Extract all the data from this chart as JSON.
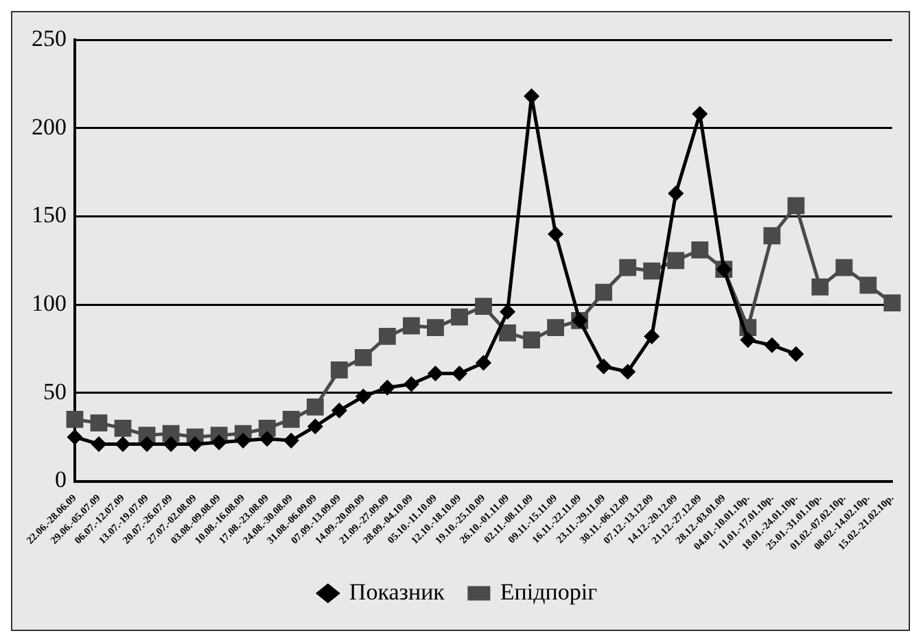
{
  "chart_data": {
    "type": "line",
    "categories": [
      "22.06.-28.06.09",
      "29.06.-05.07.09",
      "06.07.-12.07.09",
      "13.07.-19.07.09",
      "20.07.-26.07.09",
      "27.07.-02.08.09",
      "03.08.-09.08.09",
      "10.08.-16.08.09",
      "17.08.-23.08.09",
      "24.08.-30.08.09",
      "31.08.-06.09.09",
      "07.09.-13.09.09",
      "14.09.-20.09.09",
      "21.09.-27.09.09",
      "28.09.-04.10.09",
      "05.10.-11.10.09",
      "12.10.-18.10.09",
      "19.10.-25.10.09",
      "26.10.-01.11.09",
      "02.11.-08.11.09",
      "09.11.-15.11.09",
      "16.11.-22.11.09",
      "23.11.-29.11.09",
      "30.11.-06.12.09",
      "07.12.-13.12.09",
      "14.12.-20.12.09",
      "21.12.-27.12.09",
      "28.12.-03.01.09",
      "04.01.-10.01.10р.",
      "11.01.-17.01.10р.",
      "18.01.-24.01.10р.",
      "25.01.-31.01.10р.",
      "01.02.-07.02.10р.",
      "08.02.-14.02.10р.",
      "15.02.-21.02.10р."
    ],
    "series": [
      {
        "name": "Показник",
        "color": "#000000",
        "marker": "diamond",
        "values": [
          25,
          21,
          21,
          21,
          21,
          21,
          22,
          23,
          24,
          23,
          31,
          40,
          48,
          53,
          55,
          61,
          61,
          67,
          96,
          218,
          140,
          91,
          65,
          62,
          82,
          163,
          208,
          120,
          80,
          77,
          72,
          null,
          null,
          null,
          null
        ]
      },
      {
        "name": "Епідпоріг",
        "color": "#4a4a4a",
        "marker": "square",
        "values": [
          35,
          33,
          30,
          26,
          27,
          25,
          26,
          27,
          30,
          35,
          42,
          63,
          70,
          82,
          88,
          87,
          93,
          99,
          84,
          80,
          87,
          91,
          107,
          121,
          119,
          125,
          131,
          120,
          87,
          139,
          156,
          110,
          121,
          111,
          101
        ]
      }
    ],
    "ylim": [
      0,
      250
    ],
    "yticks": [
      0,
      50,
      100,
      150,
      200,
      250
    ],
    "grid": "y",
    "legend": "bottom",
    "line_style": "solid"
  }
}
